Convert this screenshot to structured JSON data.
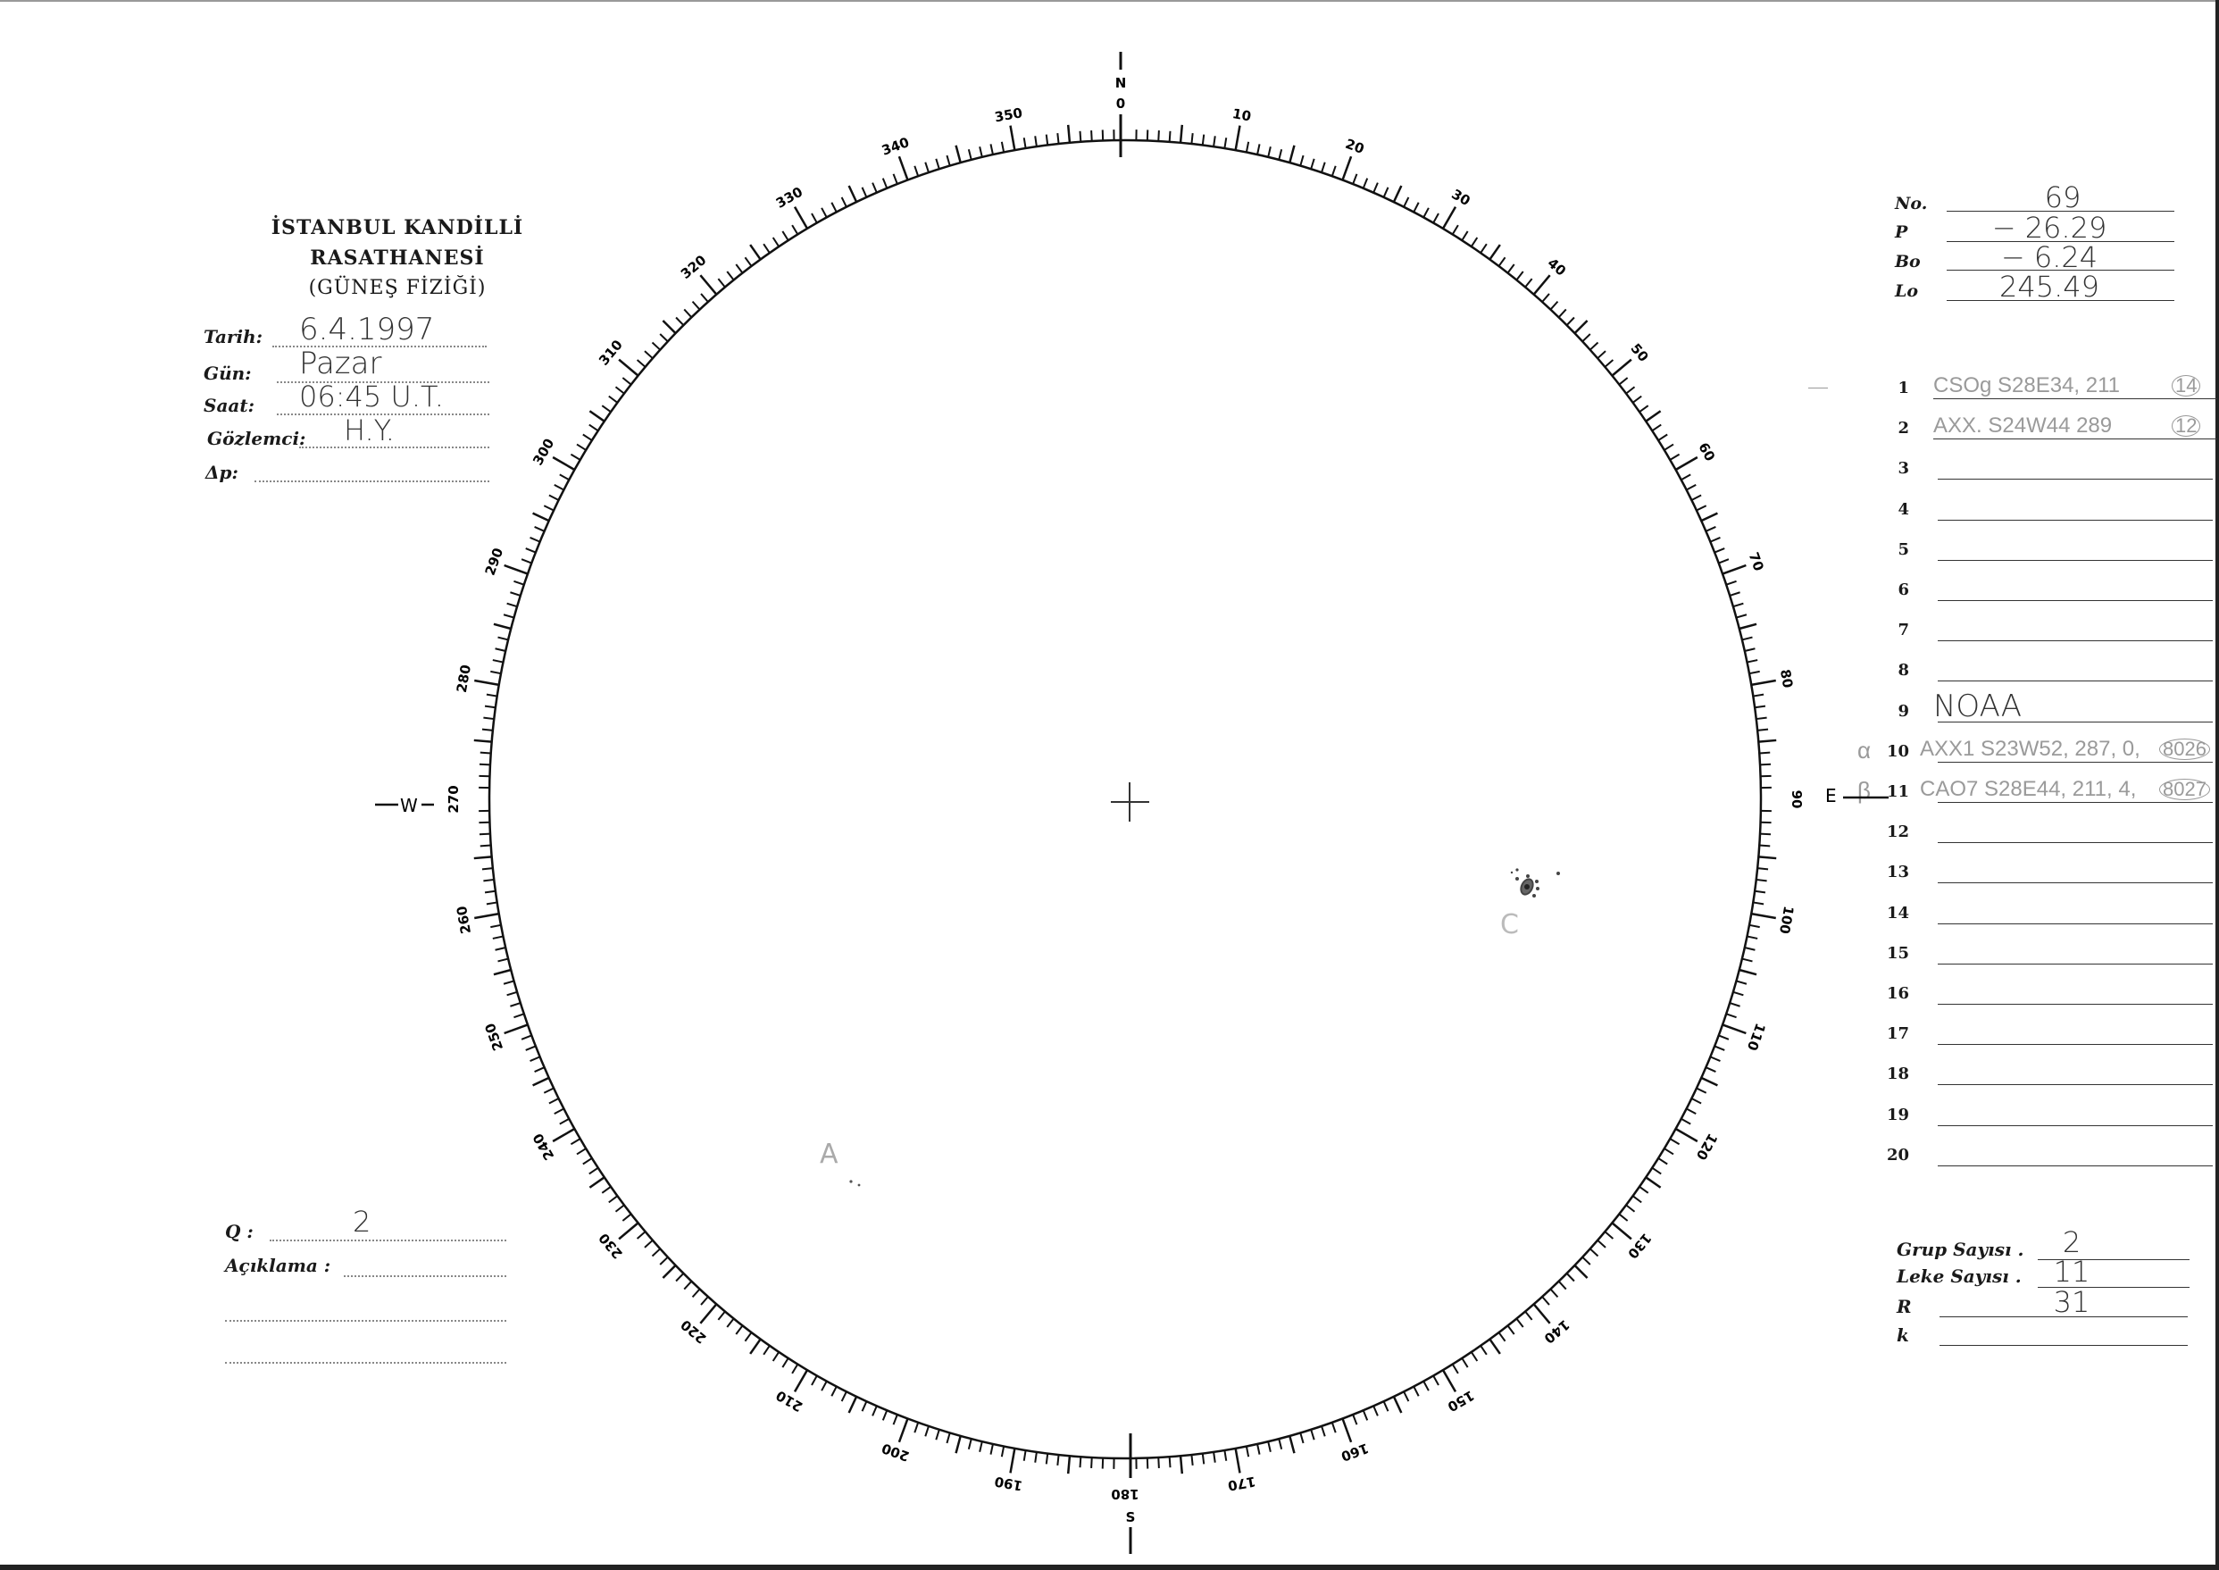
{
  "header": {
    "institution": "İSTANBUL KANDİLLİ RASATHANESİ",
    "department": "(GÜNEŞ FİZİĞİ)"
  },
  "observation": {
    "date_label": "Tarih:",
    "date_value": "6.4.1997",
    "day_label": "Gün:",
    "day_value": "Pazar",
    "time_label": "Saat:",
    "time_value": "06:45  U.T.",
    "observer_label": "Gözlemci:",
    "observer_value": "H.Y.",
    "delta_p_label": "Δp:",
    "delta_p_value": ""
  },
  "parameters": {
    "no_label": "No.",
    "no_value": "69",
    "p_label": "P",
    "p_value": "− 26.29",
    "bo_label": "Bo",
    "bo_value": "− 6.24",
    "lo_label": "Lo",
    "lo_value": "245.49"
  },
  "groups": [
    {
      "n": "1",
      "text": "CSOg  S28E34, 211",
      "count": "14",
      "mark": ""
    },
    {
      "n": "2",
      "text": "AXX.  S24W44  289",
      "count": "12",
      "mark": ""
    },
    {
      "n": "3",
      "text": "",
      "count": "",
      "mark": ""
    },
    {
      "n": "4",
      "text": "",
      "count": "",
      "mark": ""
    },
    {
      "n": "5",
      "text": "",
      "count": "",
      "mark": ""
    },
    {
      "n": "6",
      "text": "",
      "count": "",
      "mark": ""
    },
    {
      "n": "7",
      "text": "",
      "count": "",
      "mark": ""
    },
    {
      "n": "8",
      "text": "",
      "count": "",
      "mark": ""
    },
    {
      "n": "9",
      "text": "NOAA",
      "count": "",
      "mark": ""
    },
    {
      "n": "10",
      "text": "AXX1  S23W52, 287, 0,",
      "count": "8026",
      "mark": "α"
    },
    {
      "n": "11",
      "text": "CAO7  S28E44, 211, 4,",
      "count": "8027",
      "mark": "β"
    },
    {
      "n": "12",
      "text": "",
      "count": "",
      "mark": ""
    },
    {
      "n": "13",
      "text": "",
      "count": "",
      "mark": ""
    },
    {
      "n": "14",
      "text": "",
      "count": "",
      "mark": ""
    },
    {
      "n": "15",
      "text": "",
      "count": "",
      "mark": ""
    },
    {
      "n": "16",
      "text": "",
      "count": "",
      "mark": ""
    },
    {
      "n": "17",
      "text": "",
      "count": "",
      "mark": ""
    },
    {
      "n": "18",
      "text": "",
      "count": "",
      "mark": ""
    },
    {
      "n": "19",
      "text": "",
      "count": "",
      "mark": ""
    },
    {
      "n": "20",
      "text": "",
      "count": "",
      "mark": ""
    }
  ],
  "summary": {
    "group_count_label": "Grup Sayısı .",
    "group_count_value": "2",
    "spot_count_label": "Leke Sayısı .",
    "spot_count_value": "11",
    "r_label": "R",
    "r_value": "31",
    "k_label": "k",
    "k_value": ""
  },
  "quality": {
    "q_label": "Q :",
    "q_value": "2",
    "note_label": "Açıklama :",
    "note_value": ""
  },
  "dial": {
    "north": "N",
    "south": "S",
    "east": "E",
    "west": "W",
    "zero": "0",
    "degree_labels": [
      "10",
      "20",
      "30",
      "40",
      "50",
      "60",
      "70",
      "80",
      "90",
      "100",
      "110",
      "120",
      "130",
      "140",
      "150",
      "160",
      "170",
      "180",
      "190",
      "200",
      "210",
      "220",
      "230",
      "240",
      "250",
      "260",
      "270",
      "280",
      "290",
      "300",
      "310",
      "320",
      "330",
      "340",
      "350"
    ]
  },
  "drawing": {
    "group_a_label": "A",
    "group_c_label": "C"
  }
}
